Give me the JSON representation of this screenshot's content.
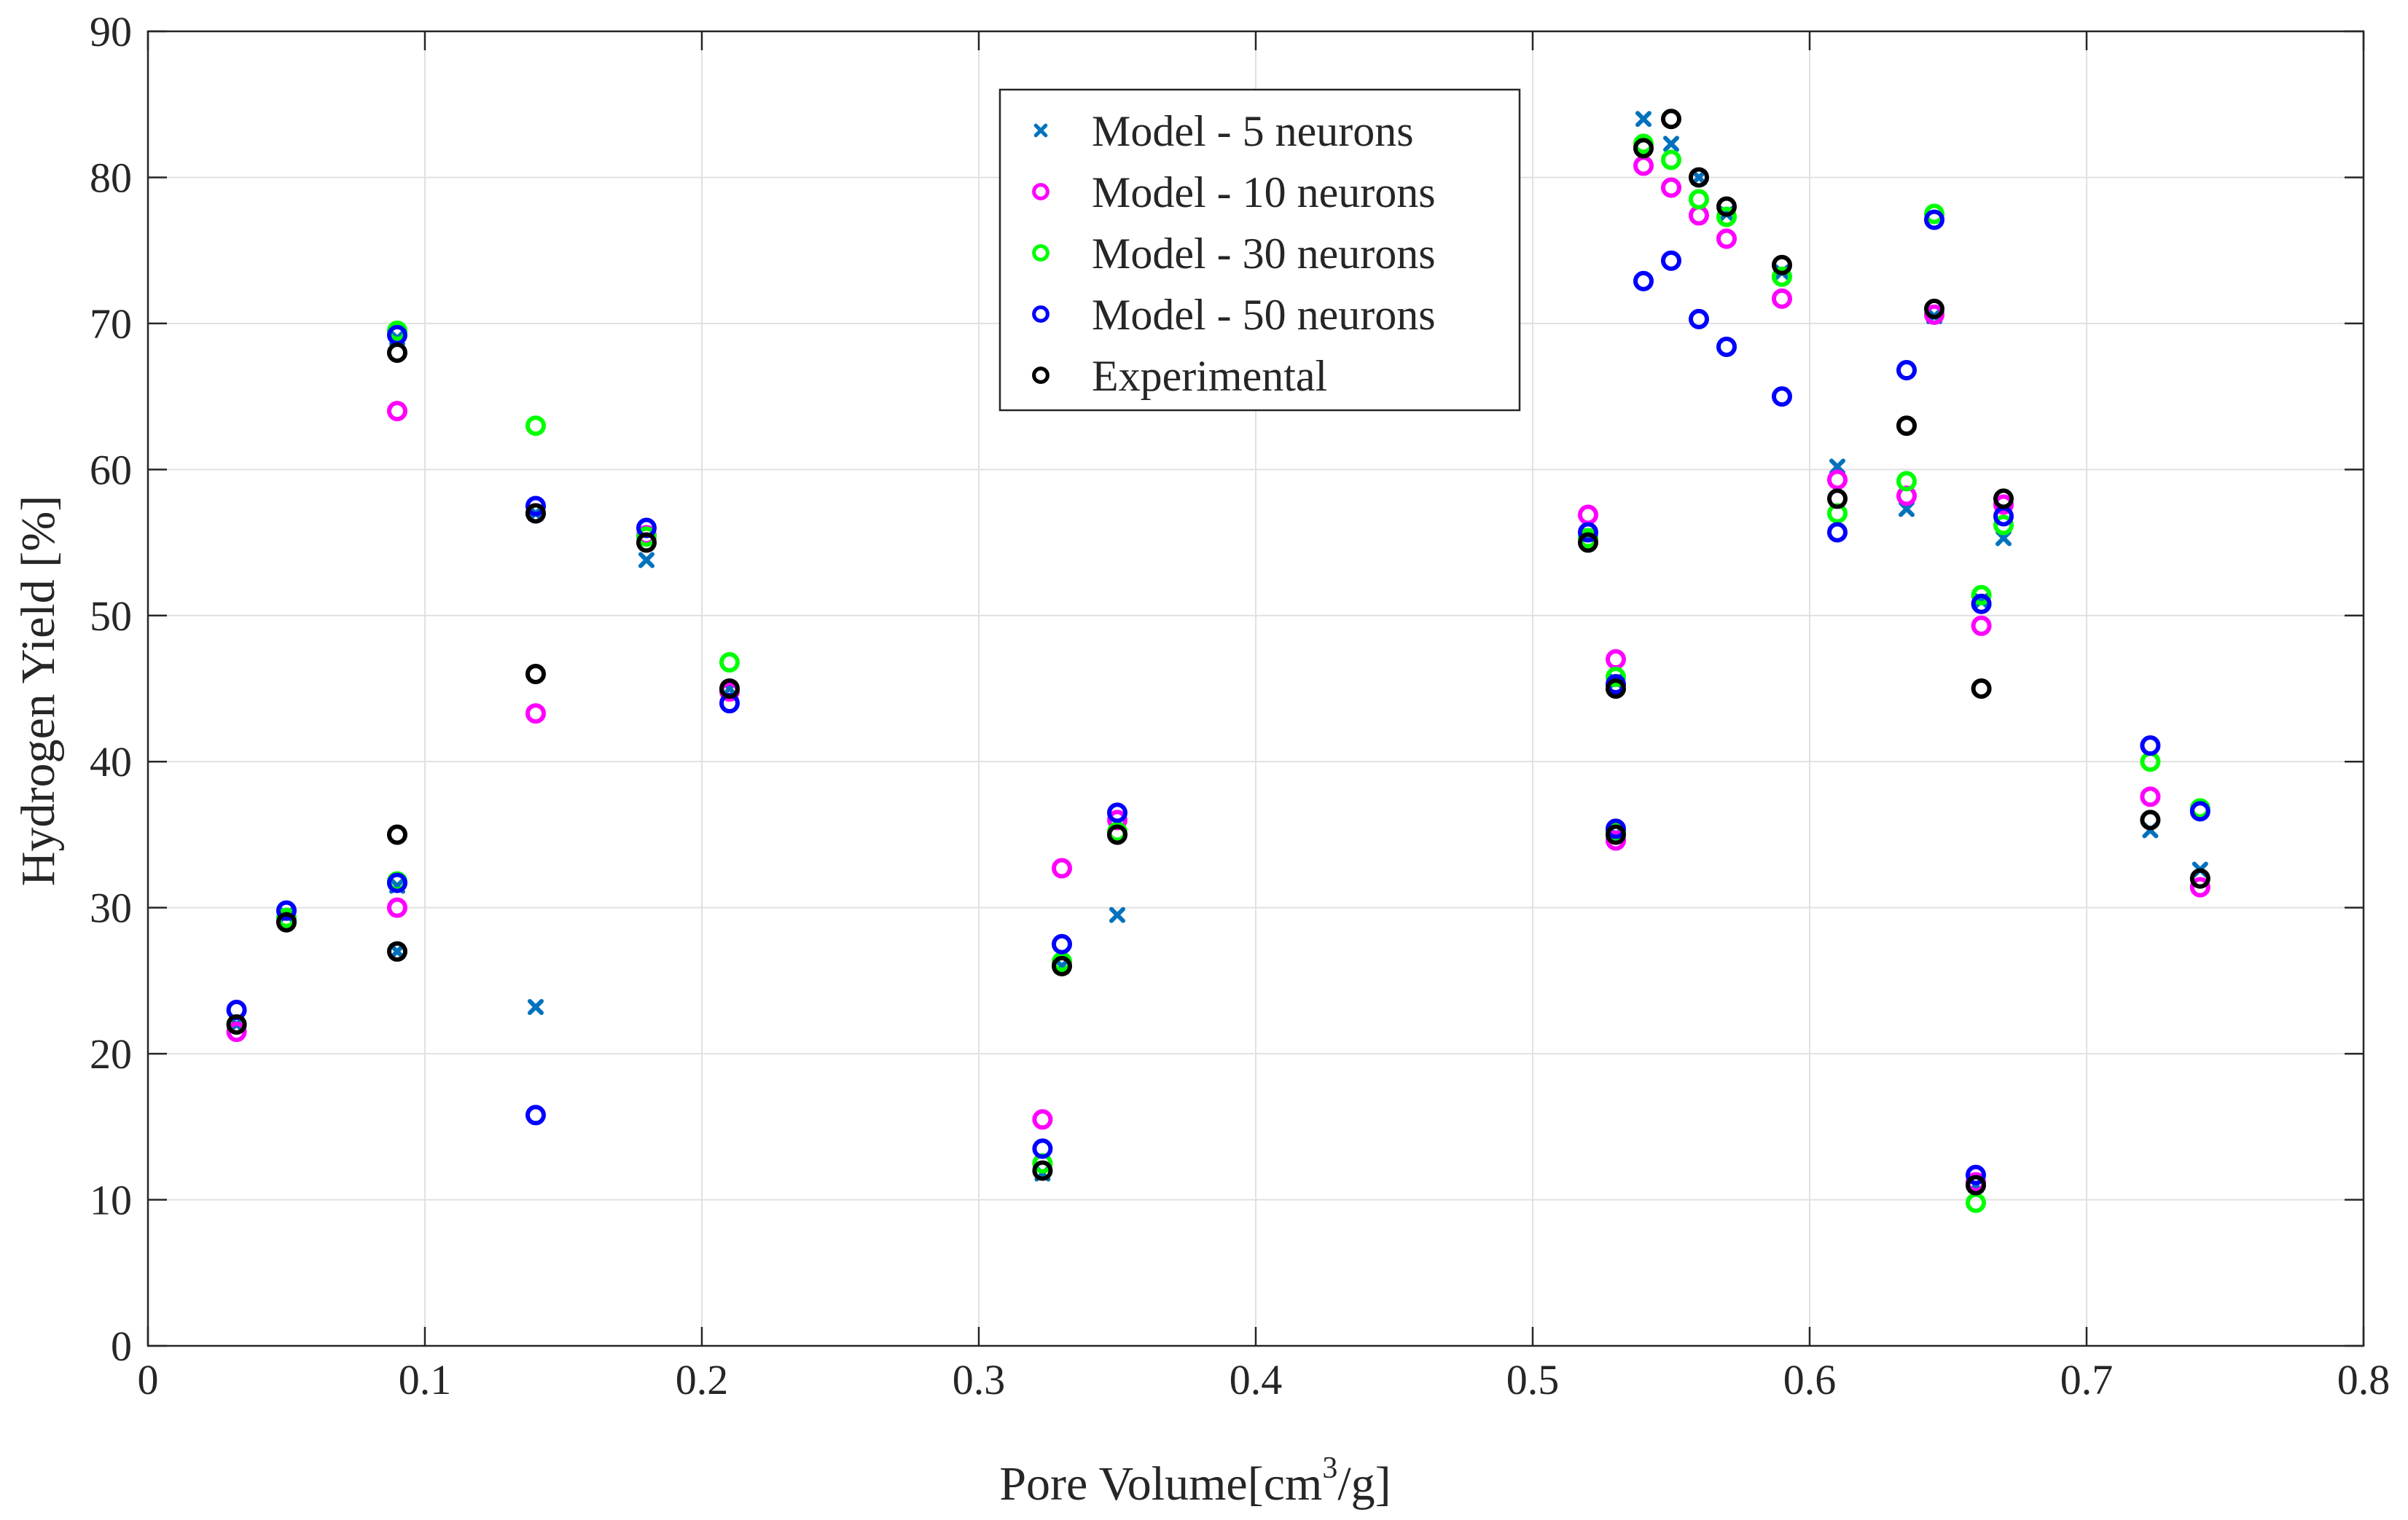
{
  "chart_data": {
    "type": "scatter",
    "title": "",
    "xlabel_main": "Pore Volume[cm",
    "xlabel_sup": "3",
    "xlabel_tail": "/g]",
    "ylabel": "Hydrogen Yield [%]",
    "xlim": [
      0,
      0.8
    ],
    "ylim": [
      0,
      90
    ],
    "grid": true,
    "legend_position": "top-center",
    "x_ticks": [
      {
        "value": 0,
        "label": "0"
      },
      {
        "value": 0.1,
        "label": "0.1"
      },
      {
        "value": 0.2,
        "label": "0.2"
      },
      {
        "value": 0.3,
        "label": "0.3"
      },
      {
        "value": 0.4,
        "label": "0.4"
      },
      {
        "value": 0.5,
        "label": "0.5"
      },
      {
        "value": 0.6,
        "label": "0.6"
      },
      {
        "value": 0.7,
        "label": "0.7"
      },
      {
        "value": 0.8,
        "label": "0.8"
      }
    ],
    "y_ticks": [
      {
        "value": 0,
        "label": "0"
      },
      {
        "value": 10,
        "label": "10"
      },
      {
        "value": 20,
        "label": "20"
      },
      {
        "value": 30,
        "label": "30"
      },
      {
        "value": 40,
        "label": "40"
      },
      {
        "value": 50,
        "label": "50"
      },
      {
        "value": 60,
        "label": "60"
      },
      {
        "value": 70,
        "label": "70"
      },
      {
        "value": 80,
        "label": "80"
      },
      {
        "value": 90,
        "label": "90"
      }
    ],
    "series": [
      {
        "name": "Model - 5 neurons",
        "marker": "x",
        "color": "#0072BD",
        "points": [
          [
            0.032,
            22.0
          ],
          [
            0.05,
            29.5
          ],
          [
            0.09,
            69.0
          ],
          [
            0.09,
            31.5
          ],
          [
            0.09,
            27.0
          ],
          [
            0.14,
            57.0
          ],
          [
            0.14,
            23.2
          ],
          [
            0.18,
            53.8
          ],
          [
            0.21,
            45.0
          ],
          [
            0.323,
            11.8
          ],
          [
            0.33,
            26.0
          ],
          [
            0.35,
            29.5
          ],
          [
            0.52,
            55.5
          ],
          [
            0.53,
            45.5
          ],
          [
            0.53,
            35.0
          ],
          [
            0.54,
            84.0
          ],
          [
            0.55,
            82.3
          ],
          [
            0.56,
            80.0
          ],
          [
            0.57,
            77.5
          ],
          [
            0.59,
            73.5
          ],
          [
            0.61,
            60.2
          ],
          [
            0.635,
            57.3
          ],
          [
            0.645,
            70.5
          ],
          [
            0.66,
            11.0
          ],
          [
            0.662,
            51.0
          ],
          [
            0.67,
            55.3
          ],
          [
            0.723,
            35.3
          ],
          [
            0.741,
            32.6
          ]
        ]
      },
      {
        "name": "Model - 10 neurons",
        "marker": "o",
        "color": "#FF00FF",
        "points": [
          [
            0.032,
            21.5
          ],
          [
            0.05,
            29.2
          ],
          [
            0.09,
            64.0
          ],
          [
            0.09,
            30.0
          ],
          [
            0.14,
            57.0
          ],
          [
            0.14,
            43.3
          ],
          [
            0.18,
            55.5
          ],
          [
            0.21,
            44.8
          ],
          [
            0.323,
            15.5
          ],
          [
            0.33,
            32.7
          ],
          [
            0.35,
            36.0
          ],
          [
            0.52,
            56.9
          ],
          [
            0.53,
            47.0
          ],
          [
            0.53,
            34.6
          ],
          [
            0.54,
            80.8
          ],
          [
            0.55,
            79.3
          ],
          [
            0.56,
            77.4
          ],
          [
            0.57,
            75.8
          ],
          [
            0.59,
            71.7
          ],
          [
            0.61,
            59.3
          ],
          [
            0.635,
            58.2
          ],
          [
            0.645,
            70.6
          ],
          [
            0.66,
            11.2
          ],
          [
            0.662,
            49.3
          ],
          [
            0.67,
            57.6
          ],
          [
            0.723,
            37.6
          ],
          [
            0.741,
            31.4
          ]
        ]
      },
      {
        "name": "Model - 30 neurons",
        "marker": "o",
        "color": "#00FF00",
        "points": [
          [
            0.032,
            22.0
          ],
          [
            0.05,
            29.3
          ],
          [
            0.09,
            69.5
          ],
          [
            0.09,
            31.8
          ],
          [
            0.14,
            63.0
          ],
          [
            0.18,
            55.4
          ],
          [
            0.21,
            46.8
          ],
          [
            0.323,
            12.5
          ],
          [
            0.33,
            26.3
          ],
          [
            0.35,
            35.2
          ],
          [
            0.52,
            55.3
          ],
          [
            0.53,
            45.8
          ],
          [
            0.53,
            35.2
          ],
          [
            0.54,
            82.3
          ],
          [
            0.55,
            81.2
          ],
          [
            0.56,
            78.5
          ],
          [
            0.57,
            77.3
          ],
          [
            0.59,
            73.2
          ],
          [
            0.61,
            57.0
          ],
          [
            0.635,
            59.2
          ],
          [
            0.645,
            77.5
          ],
          [
            0.66,
            9.8
          ],
          [
            0.662,
            51.4
          ],
          [
            0.67,
            56.2
          ],
          [
            0.723,
            40.0
          ],
          [
            0.741,
            36.8
          ]
        ]
      },
      {
        "name": "Model - 50 neurons",
        "marker": "o",
        "color": "#0000FF",
        "points": [
          [
            0.032,
            23.0
          ],
          [
            0.05,
            29.8
          ],
          [
            0.09,
            69.2
          ],
          [
            0.09,
            31.7
          ],
          [
            0.14,
            57.5
          ],
          [
            0.14,
            15.8
          ],
          [
            0.18,
            56.0
          ],
          [
            0.21,
            44.0
          ],
          [
            0.323,
            13.5
          ],
          [
            0.33,
            27.5
          ],
          [
            0.35,
            36.5
          ],
          [
            0.52,
            55.7
          ],
          [
            0.53,
            45.3
          ],
          [
            0.53,
            35.4
          ],
          [
            0.54,
            72.9
          ],
          [
            0.55,
            74.3
          ],
          [
            0.56,
            70.3
          ],
          [
            0.57,
            68.4
          ],
          [
            0.59,
            65.0
          ],
          [
            0.61,
            55.7
          ],
          [
            0.635,
            66.8
          ],
          [
            0.645,
            77.1
          ],
          [
            0.66,
            11.7
          ],
          [
            0.662,
            50.8
          ],
          [
            0.67,
            56.8
          ],
          [
            0.723,
            41.1
          ],
          [
            0.741,
            36.6
          ]
        ]
      },
      {
        "name": "Experimental",
        "marker": "o",
        "color": "#000000",
        "points": [
          [
            0.032,
            22.0
          ],
          [
            0.05,
            29.0
          ],
          [
            0.09,
            68.0
          ],
          [
            0.09,
            35.0
          ],
          [
            0.09,
            27.0
          ],
          [
            0.14,
            57.0
          ],
          [
            0.14,
            46.0
          ],
          [
            0.18,
            55.0
          ],
          [
            0.21,
            45.0
          ],
          [
            0.323,
            12.0
          ],
          [
            0.33,
            26.0
          ],
          [
            0.35,
            35.0
          ],
          [
            0.52,
            55.0
          ],
          [
            0.53,
            45.0
          ],
          [
            0.53,
            35.0
          ],
          [
            0.54,
            82.0
          ],
          [
            0.55,
            84.0
          ],
          [
            0.56,
            80.0
          ],
          [
            0.57,
            78.0
          ],
          [
            0.59,
            74.0
          ],
          [
            0.61,
            58.0
          ],
          [
            0.635,
            63.0
          ],
          [
            0.645,
            71.0
          ],
          [
            0.66,
            11.0
          ],
          [
            0.662,
            45.0
          ],
          [
            0.67,
            58.0
          ],
          [
            0.723,
            36.0
          ],
          [
            0.741,
            32.0
          ]
        ]
      }
    ]
  }
}
